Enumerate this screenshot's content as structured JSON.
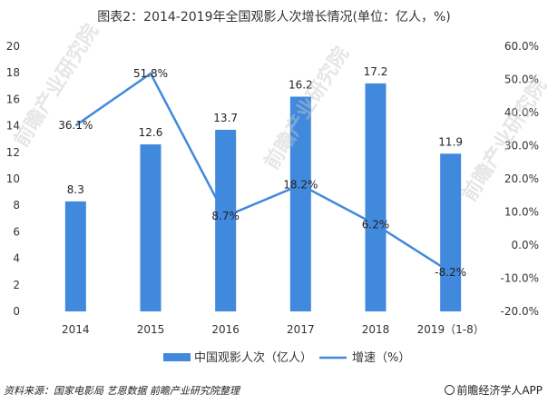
{
  "chart_data": {
    "type": "bar",
    "title": "图表2：2014-2019年全国观影人次增长情况(单位：亿人，%)",
    "categories": [
      "2014",
      "2015",
      "2016",
      "2017",
      "2018",
      "2019（1-8）"
    ],
    "series": [
      {
        "name": "中国观影人次（亿人）",
        "type": "bar",
        "axis": "left",
        "values": [
          8.3,
          12.6,
          13.7,
          16.2,
          17.2,
          11.9
        ],
        "labels": [
          "8.3",
          "12.6",
          "13.7",
          "16.2",
          "17.2",
          "11.9"
        ]
      },
      {
        "name": "增速（%）",
        "type": "line",
        "axis": "right",
        "values": [
          36.1,
          51.8,
          8.7,
          18.2,
          6.2,
          -8.2
        ],
        "labels": [
          "36.1%",
          "51.8%",
          "8.7%",
          "18.2%",
          "6.2%",
          "-8.2%"
        ]
      }
    ],
    "left_axis": {
      "ylim": [
        0,
        20
      ],
      "ticks": [
        "0",
        "2",
        "4",
        "6",
        "8",
        "10",
        "12",
        "14",
        "16",
        "18",
        "20"
      ]
    },
    "right_axis": {
      "ylim": [
        -20,
        60
      ],
      "ticks": [
        "-20.0%",
        "-10.0%",
        "0.0%",
        "10.0%",
        "20.0%",
        "30.0%",
        "40.0%",
        "50.0%",
        "60.0%"
      ]
    },
    "legend_position": "bottom",
    "grid": false
  },
  "colors": {
    "bar": "#4189dd",
    "line": "#4189dd"
  },
  "footer": {
    "source": "资料来源：国家电影局 艺恩数据 前瞻产业研究院整理",
    "brand": "前瞻经济学人APP"
  },
  "watermarks": [
    "前瞻产业研究院",
    "前瞻产业研究院",
    "前瞻产业研究院"
  ]
}
